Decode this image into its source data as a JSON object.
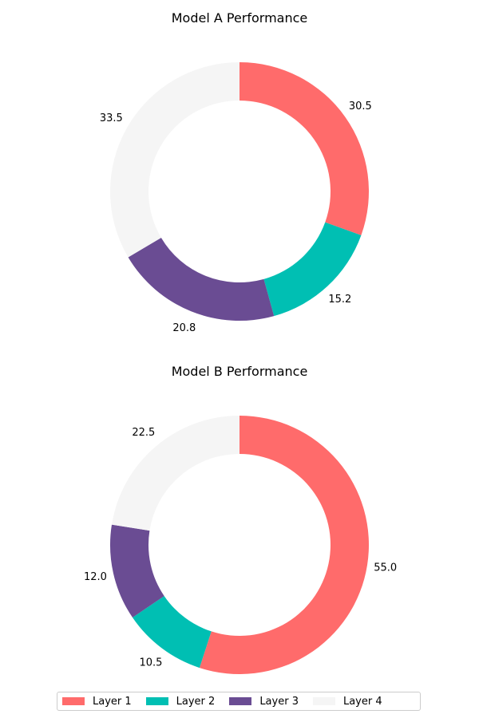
{
  "chart_data": [
    {
      "type": "pie",
      "donut": true,
      "title": "Model A Performance",
      "categories": [
        "Layer 1",
        "Layer 2",
        "Layer 3",
        "Layer 4"
      ],
      "values": [
        30.5,
        15.2,
        20.8,
        33.5
      ],
      "labels": [
        "30.5",
        "15.2",
        "20.8",
        "33.5"
      ],
      "start_angle_deg": 90,
      "direction": "clockwise"
    },
    {
      "type": "pie",
      "donut": true,
      "title": "Model B Performance",
      "categories": [
        "Layer 1",
        "Layer 2",
        "Layer 3",
        "Layer 4"
      ],
      "values": [
        55.0,
        10.5,
        12.0,
        22.5
      ],
      "labels": [
        "55.0",
        "10.5",
        "12.0",
        "22.5"
      ],
      "start_angle_deg": 90,
      "direction": "clockwise"
    }
  ],
  "colors": [
    "#ff6b6b",
    "#00bfb3",
    "#6a4c93",
    "#f5f5f5"
  ],
  "legend": {
    "placement": "bottom-center",
    "items": [
      "Layer 1",
      "Layer 2",
      "Layer 3",
      "Layer 4"
    ]
  }
}
